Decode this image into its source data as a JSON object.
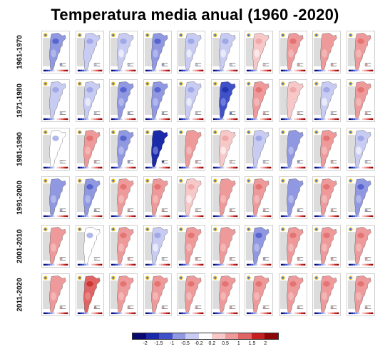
{
  "title": "Temperatura media anual (1960 -2020)",
  "decades": [
    "1961-1970",
    "1971-1980",
    "1981-1990",
    "1991-2000",
    "2001-2010",
    "2011-2020"
  ],
  "legend": {
    "colors": [
      "#0a0a6e",
      "#1a2aa8",
      "#4050c8",
      "#8f98e0",
      "#c8ccf2",
      "#ffffff",
      "#f6c8c8",
      "#ee9a9a",
      "#e06464",
      "#c42020",
      "#8c0808"
    ],
    "ticks": [
      "-2",
      "-1.5",
      "-1",
      "-0.5",
      "-0.2",
      "0.2",
      "0.5",
      "1",
      "1.5",
      "2"
    ]
  },
  "anomaly_grid": [
    [
      -1.0,
      -0.5,
      -0.3,
      -1.0,
      -0.3,
      -0.3,
      0.2,
      0.6,
      0.5,
      0.7
    ],
    [
      -0.5,
      -0.3,
      -0.8,
      -0.8,
      -0.4,
      -1.2,
      0.6,
      0.4,
      -0.3,
      0.6
    ],
    [
      -0.2,
      0.6,
      -0.8,
      -1.6,
      0.5,
      0.3,
      -0.5,
      -0.6,
      0.8,
      -0.3
    ],
    [
      -0.6,
      -0.8,
      0.6,
      0.7,
      0.3,
      0.5,
      0.7,
      -0.6,
      0.8,
      -1.0
    ],
    [
      0.5,
      -0.2,
      0.8,
      -0.3,
      0.7,
      0.5,
      -0.8,
      0.9,
      0.9,
      0.8
    ],
    [
      0.5,
      1.2,
      0.9,
      0.9,
      0.9,
      0.7,
      0.7,
      0.9,
      0.9,
      0.8
    ]
  ]
}
